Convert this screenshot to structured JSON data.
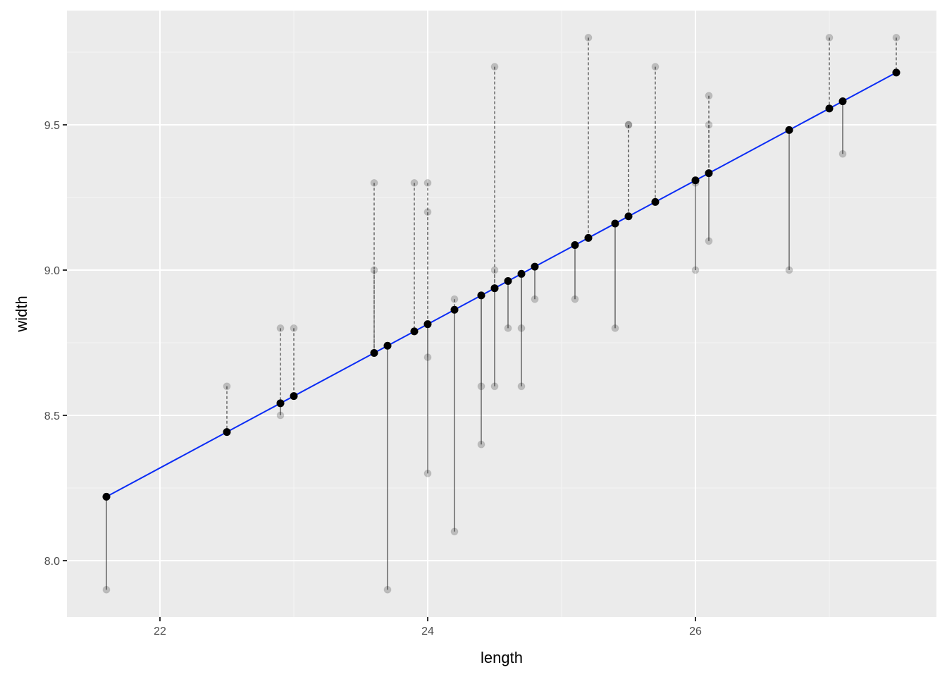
{
  "colors": {
    "panel_background": "#ebebeb",
    "grid_major": "#ffffff",
    "grid_minor": "#f5f5f5",
    "fit_line": "#0a2cf5",
    "fitted_point": "#000000",
    "observed_point": "#a6a6a6",
    "residual_segment": "#000000"
  },
  "chart_data": {
    "type": "scatter",
    "title": "",
    "xlabel": "length",
    "ylabel": "width",
    "xlim": [
      21.3,
      27.7
    ],
    "ylim": [
      7.8,
      9.83
    ],
    "x_ticks": [
      22,
      24,
      26
    ],
    "x_tick_labels": [
      "22",
      "24",
      "26"
    ],
    "y_ticks": [
      8.0,
      8.5,
      9.0,
      9.5
    ],
    "y_tick_labels": [
      "8.0",
      "8.5",
      "9.0",
      "9.5"
    ],
    "grid": true,
    "legend": null,
    "regression_line": {
      "x_start": 21.6,
      "y_start": 8.22,
      "x_end": 27.5,
      "y_end": 9.68,
      "intercept": 2.874,
      "slope": 0.2475
    },
    "residual_style": {
      "positive_residual": "dashed",
      "negative_residual": "solid"
    },
    "series": [
      {
        "name": "observed",
        "points": [
          [
            21.6,
            7.9
          ],
          [
            22.5,
            8.6
          ],
          [
            22.9,
            8.8
          ],
          [
            22.9,
            8.5
          ],
          [
            23.0,
            8.8
          ],
          [
            23.6,
            9.3
          ],
          [
            23.6,
            9.0
          ],
          [
            23.7,
            7.9
          ],
          [
            23.9,
            9.3
          ],
          [
            24.0,
            9.3
          ],
          [
            24.0,
            9.2
          ],
          [
            24.0,
            8.7
          ],
          [
            24.0,
            8.3
          ],
          [
            24.2,
            8.9
          ],
          [
            24.2,
            8.1
          ],
          [
            24.4,
            8.6
          ],
          [
            24.4,
            8.4
          ],
          [
            24.5,
            9.7
          ],
          [
            24.5,
            9.0
          ],
          [
            24.5,
            8.6
          ],
          [
            24.6,
            8.8
          ],
          [
            24.7,
            8.8
          ],
          [
            24.7,
            8.6
          ],
          [
            24.8,
            8.9
          ],
          [
            25.1,
            8.9
          ],
          [
            25.2,
            9.8
          ],
          [
            25.4,
            8.8
          ],
          [
            25.5,
            9.5
          ],
          [
            25.5,
            9.5
          ],
          [
            25.7,
            9.7
          ],
          [
            26.0,
            9.3
          ],
          [
            26.0,
            9.0
          ],
          [
            26.1,
            9.6
          ],
          [
            26.1,
            9.5
          ],
          [
            26.1,
            9.1
          ],
          [
            26.7,
            9.0
          ],
          [
            27.0,
            9.8
          ],
          [
            27.1,
            9.4
          ],
          [
            27.5,
            9.8
          ]
        ]
      },
      {
        "name": "fitted",
        "points": [
          [
            21.6,
            8.22
          ],
          [
            22.5,
            8.44
          ],
          [
            22.9,
            8.54
          ],
          [
            23.0,
            8.57
          ],
          [
            23.6,
            8.71
          ],
          [
            23.7,
            8.74
          ],
          [
            23.9,
            8.79
          ],
          [
            24.0,
            8.81
          ],
          [
            24.2,
            8.86
          ],
          [
            24.4,
            8.91
          ],
          [
            24.5,
            8.94
          ],
          [
            24.6,
            8.96
          ],
          [
            24.7,
            8.99
          ],
          [
            24.8,
            9.01
          ],
          [
            25.1,
            9.09
          ],
          [
            25.2,
            9.11
          ],
          [
            25.4,
            9.16
          ],
          [
            25.5,
            9.19
          ],
          [
            25.7,
            9.23
          ],
          [
            26.0,
            9.31
          ],
          [
            26.1,
            9.33
          ],
          [
            26.7,
            9.48
          ],
          [
            27.0,
            9.56
          ],
          [
            27.1,
            9.58
          ],
          [
            27.5,
            9.68
          ]
        ]
      }
    ]
  }
}
